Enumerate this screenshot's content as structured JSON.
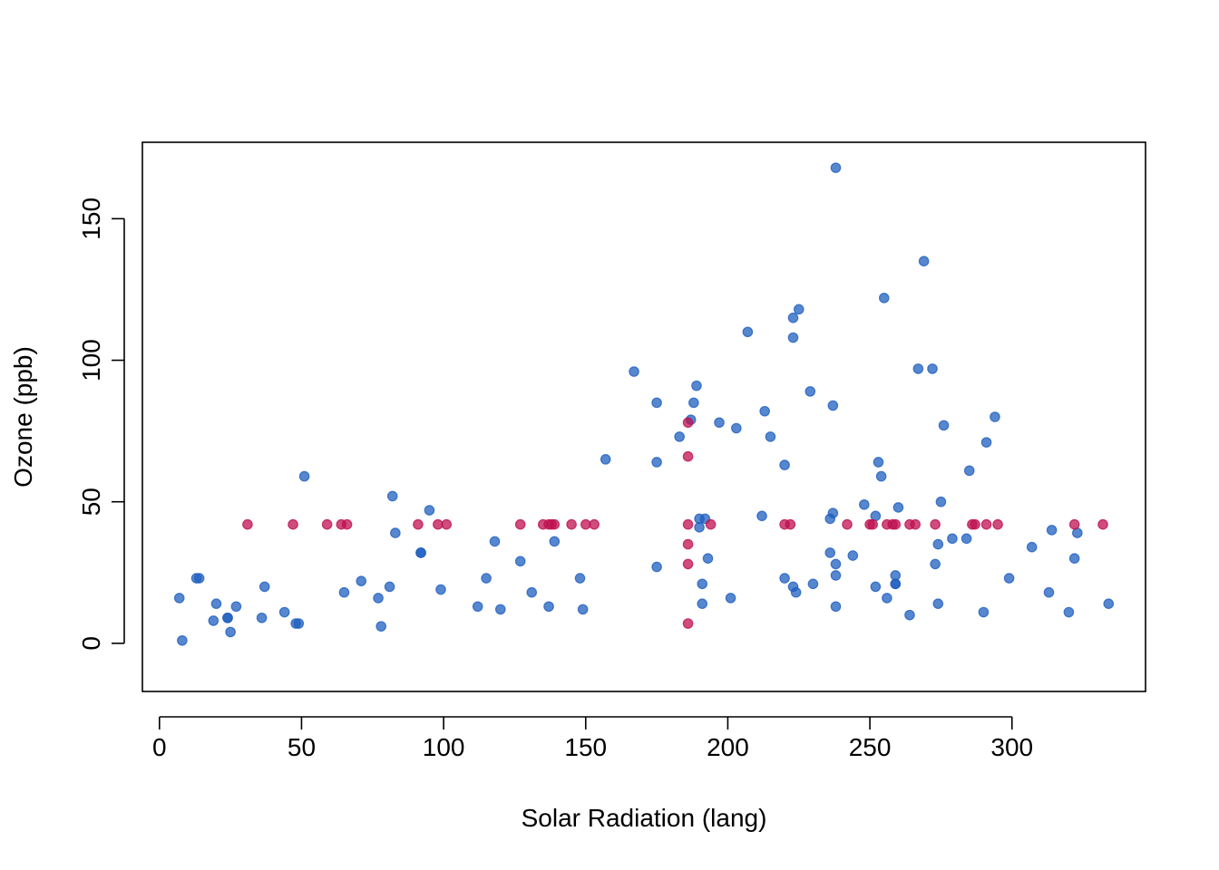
{
  "chart_data": {
    "type": "scatter",
    "title": "",
    "xlabel": "Solar Radiation (lang)",
    "ylabel": "Ozone (ppb)",
    "xlim": [
      -6,
      347
    ],
    "ylim": [
      -17,
      177
    ],
    "xticks": [
      0,
      50,
      100,
      150,
      200,
      250,
      300
    ],
    "yticks": [
      0,
      50,
      100,
      150
    ],
    "xtick_labels": [
      "0",
      "50",
      "100",
      "150",
      "200",
      "250",
      "300"
    ],
    "ytick_labels": [
      "0",
      "50",
      "100",
      "150"
    ],
    "grid": false,
    "box": true,
    "colors": {
      "observed": "#1f5fbf",
      "imputed": "#bf1050"
    },
    "series": [
      {
        "values_x": [
          7,
          8,
          13,
          14,
          19,
          20,
          24,
          24,
          25,
          27,
          36,
          37,
          44,
          48,
          49,
          51,
          65,
          71,
          77,
          78,
          81,
          82,
          83,
          92,
          92,
          95,
          99,
          112,
          115,
          118,
          120,
          127,
          131,
          137,
          139,
          148,
          149,
          157,
          167,
          175,
          175,
          175,
          183,
          187,
          188,
          189,
          190,
          190,
          191,
          191,
          192,
          193,
          197,
          201,
          203,
          207,
          212,
          213,
          215,
          220,
          220,
          223,
          223,
          223,
          224,
          225,
          229,
          230,
          236,
          236,
          237,
          237,
          238,
          238,
          238,
          238,
          244,
          248,
          252,
          252,
          253,
          254,
          255,
          256,
          259,
          259,
          259,
          260,
          264,
          267,
          269,
          272,
          273,
          274,
          274,
          275,
          276,
          279,
          284,
          285,
          290,
          291,
          294,
          299,
          307,
          313,
          314,
          320,
          322,
          323,
          334
        ],
        "values_y": [
          16,
          1,
          23,
          23,
          8,
          14,
          9,
          9,
          4,
          13,
          9,
          20,
          11,
          7,
          7,
          59,
          18,
          22,
          16,
          6,
          20,
          52,
          39,
          32,
          32,
          47,
          19,
          13,
          23,
          36,
          12,
          29,
          18,
          13,
          36,
          23,
          12,
          65,
          96,
          85,
          64,
          27,
          73,
          79,
          85,
          91,
          41,
          44,
          21,
          14,
          44,
          30,
          78,
          16,
          76,
          110,
          45,
          82,
          73,
          23,
          63,
          115,
          108,
          20,
          18,
          118,
          89,
          21,
          32,
          44,
          46,
          84,
          168,
          28,
          24,
          13,
          31,
          49,
          20,
          45,
          64,
          59,
          122,
          16,
          24,
          21,
          21,
          48,
          10,
          97,
          135,
          97,
          28,
          14,
          35,
          50,
          77,
          37,
          37,
          61,
          11,
          71,
          80,
          23,
          34,
          18,
          40,
          11,
          30,
          39,
          14
        ]
      },
      {
        "values_x": [
          31,
          47,
          59,
          64,
          66,
          91,
          98,
          101,
          127,
          135,
          137,
          138,
          139,
          145,
          150,
          153,
          186,
          186,
          186,
          186,
          186,
          186,
          194,
          220,
          222,
          242,
          250,
          251,
          256,
          258,
          259,
          264,
          266,
          273,
          286,
          287,
          291,
          295,
          322,
          332
        ],
        "values_y": [
          42,
          42,
          42,
          42,
          42,
          42,
          42,
          42,
          42,
          42,
          42,
          42,
          42,
          42,
          42,
          42,
          78,
          66,
          42,
          35,
          28,
          7,
          42,
          42,
          42,
          42,
          42,
          42,
          42,
          42,
          42,
          42,
          42,
          42,
          42,
          42,
          42,
          42,
          42,
          42
        ]
      }
    ]
  }
}
